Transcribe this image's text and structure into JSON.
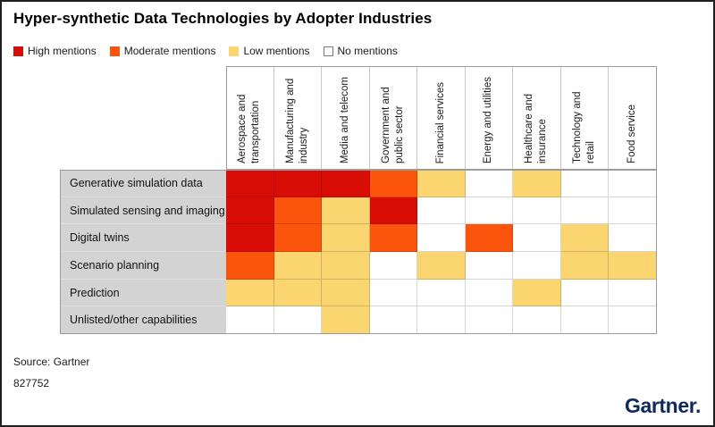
{
  "title": "Hyper-synthetic Data Technologies by Adopter Industries",
  "legend": {
    "items": [
      {
        "label": "High mentions",
        "value": "high"
      },
      {
        "label": "Moderate mentions",
        "value": "moderate"
      },
      {
        "label": "Low mentions",
        "value": "low"
      },
      {
        "label": "No mentions",
        "value": "none"
      }
    ]
  },
  "colors": {
    "high": "#D80D06",
    "moderate": "#FB540D",
    "low": "#FAD570",
    "none": "#FFFFFF",
    "row_header_bg": "#D3D3D3",
    "grid_line": "#C9C9C9",
    "logo_navy": "#10295B"
  },
  "chart_data": {
    "type": "heatmap",
    "title": "Hyper-synthetic Data Technologies by Adopter Industries",
    "legend_position": "top-left",
    "value_scale": [
      "none",
      "low",
      "moderate",
      "high"
    ],
    "columns": [
      "Aerospace and transportation",
      "Manufacturing and industry",
      "Media and telecom",
      "Government and public sector",
      "Financial services",
      "Energy and utilities",
      "Healthcare and insurance",
      "Technology and retail",
      "Food service"
    ],
    "rows": [
      "Generative simulation data",
      "Simulated sensing and imaging",
      "Digital twins",
      "Scenario planning",
      "Prediction",
      "Unlisted/other capabilities"
    ],
    "values": [
      [
        "high",
        "high",
        "high",
        "moderate",
        "low",
        "none",
        "low",
        "none",
        "none"
      ],
      [
        "high",
        "moderate",
        "low",
        "high",
        "none",
        "none",
        "none",
        "none",
        "none"
      ],
      [
        "high",
        "moderate",
        "low",
        "moderate",
        "none",
        "moderate",
        "none",
        "low",
        "none"
      ],
      [
        "moderate",
        "low",
        "low",
        "none",
        "low",
        "none",
        "none",
        "low",
        "low"
      ],
      [
        "low",
        "low",
        "low",
        "none",
        "none",
        "none",
        "low",
        "none",
        "none"
      ],
      [
        "none",
        "none",
        "low",
        "none",
        "none",
        "none",
        "none",
        "none",
        "none"
      ]
    ]
  },
  "footer": {
    "source": "Source: Gartner",
    "note": "827752"
  },
  "logo": {
    "text": "Gartner."
  }
}
